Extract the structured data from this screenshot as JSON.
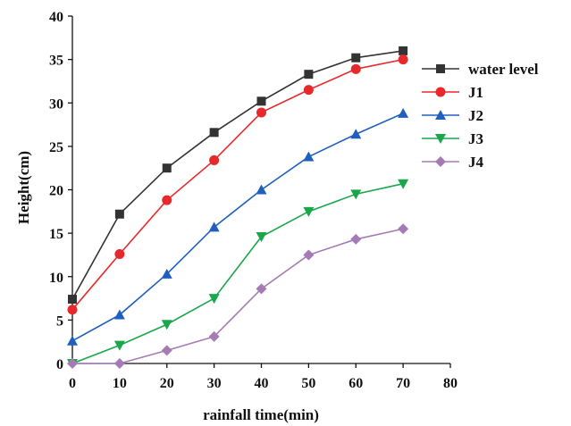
{
  "chart_data": {
    "type": "line",
    "xlabel": "rainfall time(min)",
    "ylabel": "Height(cm)",
    "xlim": [
      0,
      80
    ],
    "ylim": [
      0,
      40
    ],
    "x_ticks": [
      0,
      10,
      20,
      30,
      40,
      50,
      60,
      70,
      80
    ],
    "y_ticks": [
      0,
      5,
      10,
      15,
      20,
      25,
      30,
      35,
      40
    ],
    "grid": false,
    "legend_position": "right",
    "x": [
      0,
      10,
      20,
      30,
      40,
      50,
      60,
      70
    ],
    "series": [
      {
        "name": "water level",
        "color": "#333333",
        "marker": "square",
        "values": [
          7.4,
          17.2,
          22.5,
          26.6,
          30.2,
          33.3,
          35.2,
          36.0
        ]
      },
      {
        "name": "J1",
        "color": "#e8292c",
        "marker": "circle",
        "values": [
          6.2,
          12.6,
          18.8,
          23.4,
          28.9,
          31.5,
          33.9,
          35.0
        ]
      },
      {
        "name": "J2",
        "color": "#1f5fbd",
        "marker": "triangle-up",
        "values": [
          2.6,
          5.6,
          10.3,
          15.7,
          20.0,
          23.8,
          26.4,
          28.8
        ]
      },
      {
        "name": "J3",
        "color": "#1aa64b",
        "marker": "triangle-down",
        "values": [
          0.0,
          2.1,
          4.5,
          7.5,
          14.6,
          17.5,
          19.5,
          20.7
        ]
      },
      {
        "name": "J4",
        "color": "#a57bb5",
        "marker": "diamond",
        "values": [
          0.0,
          0.0,
          1.5,
          3.1,
          8.6,
          12.5,
          14.3,
          15.5
        ]
      }
    ]
  }
}
